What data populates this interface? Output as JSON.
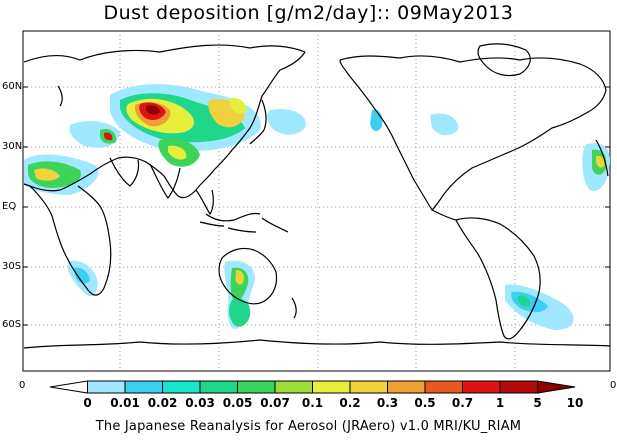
{
  "title": "Dust deposition [g/m2/day]:: 09May2013",
  "footer": "The Japanese Reanalysis for Aerosol (JRAero) v1.0 MRI/KU_RIAM",
  "lat_labels": [
    "60N",
    "30N",
    "EQ",
    "30S",
    "60S"
  ],
  "side_labels": {
    "left": "0",
    "right": "0"
  },
  "colorbar": {
    "labels": [
      "0",
      "0.01",
      "0.02",
      "0.03",
      "0.05",
      "0.07",
      "0.1",
      "0.2",
      "0.3",
      "0.5",
      "0.7",
      "1",
      "5",
      "10"
    ],
    "colors": [
      "#ffffff",
      "#9fe8ff",
      "#3ccff2",
      "#19e6c8",
      "#20d68a",
      "#3cd45a",
      "#a0dc3c",
      "#e6f03c",
      "#f0d23c",
      "#f0a032",
      "#e65a1e",
      "#dc1414",
      "#b40a0a",
      "#8c0000"
    ]
  }
}
